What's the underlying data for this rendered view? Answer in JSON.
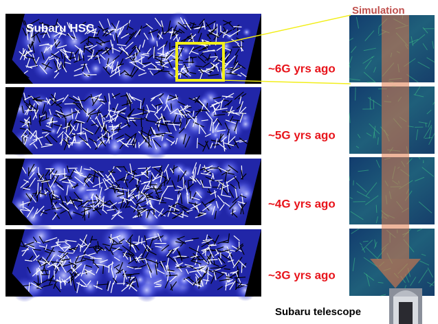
{
  "figure": {
    "survey_label": "Subaru HSC",
    "simulation_label": "Simulation",
    "panels": [
      {
        "label": "~6G yrs ago"
      },
      {
        "label": "~5G yrs ago"
      },
      {
        "label": "~4G yrs ago"
      },
      {
        "label": "~3G yrs ago"
      }
    ],
    "telescope_label": "Subaru telescope"
  }
}
